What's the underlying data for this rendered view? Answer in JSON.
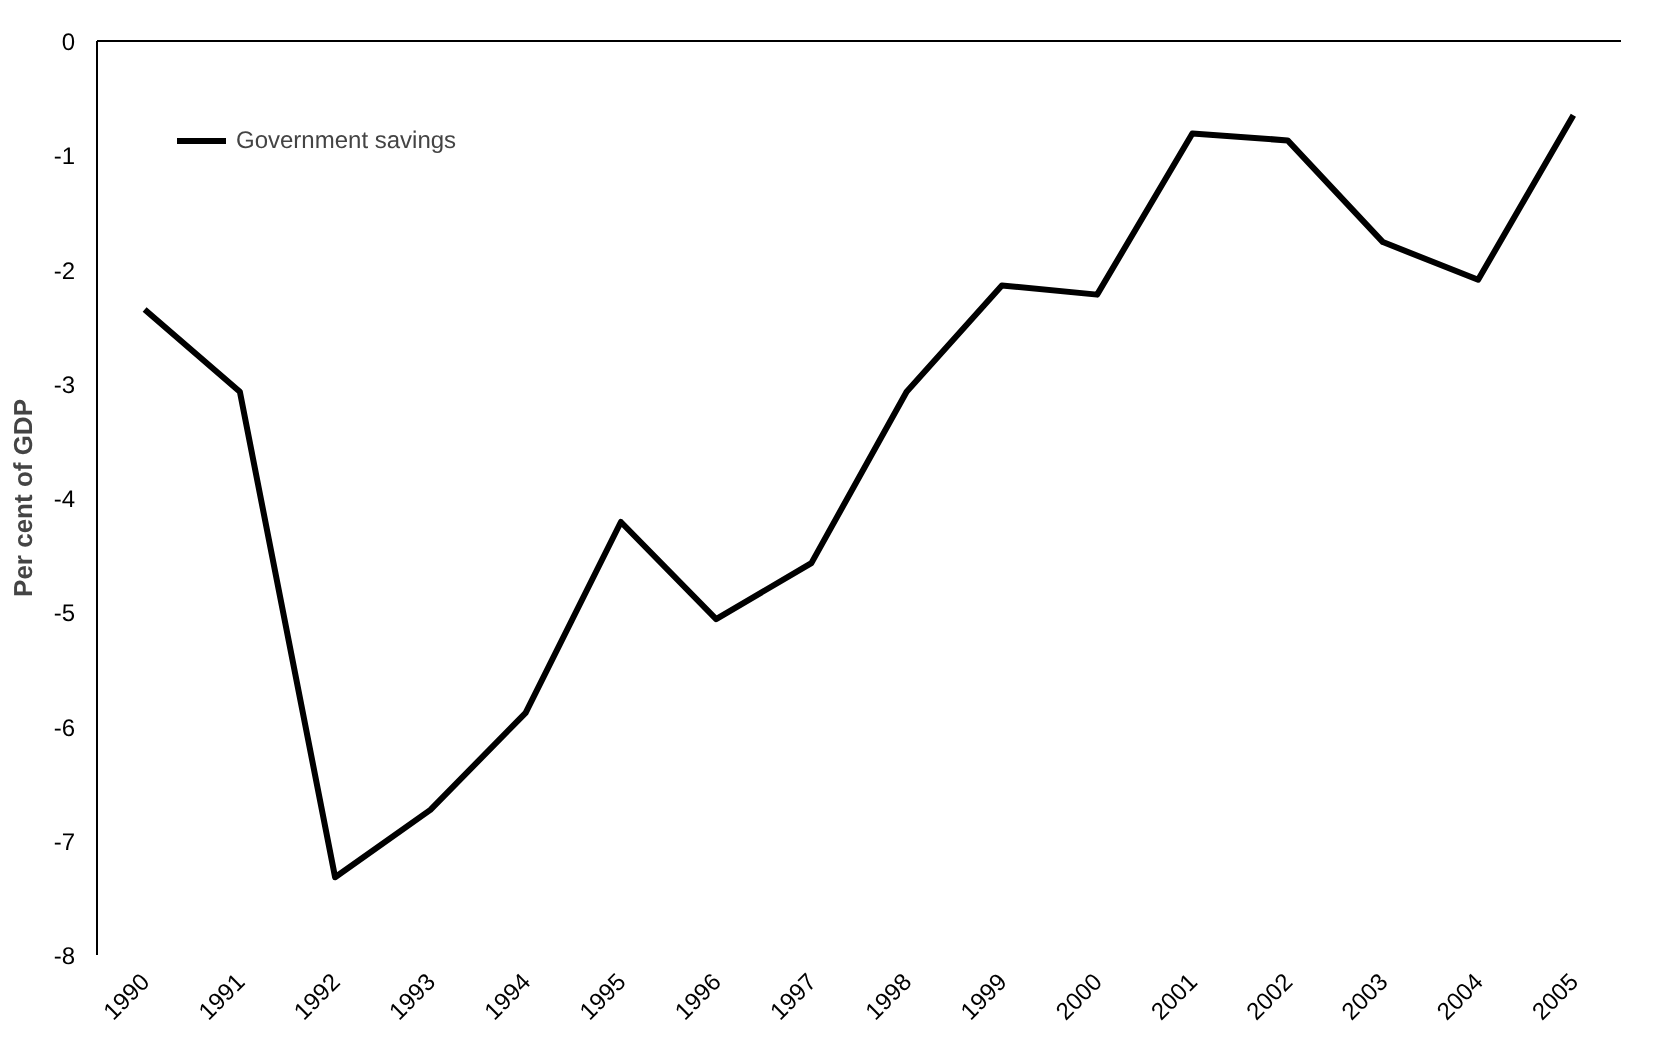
{
  "chart_data": {
    "type": "line",
    "ylabel": "Per cent of GDP",
    "categories": [
      "1990",
      "1991",
      "1992",
      "1993",
      "1994",
      "1995",
      "1996",
      "1997",
      "1998",
      "1999",
      "2000",
      "2001",
      "2002",
      "2003",
      "2004",
      "2005"
    ],
    "series": [
      {
        "name": "Government savings",
        "color": "#000000",
        "values": [
          -2.35,
          -3.07,
          -7.32,
          -6.73,
          -5.88,
          -4.21,
          -5.06,
          -4.57,
          -3.07,
          -2.14,
          -2.22,
          -0.81,
          -0.87,
          -1.76,
          -2.09,
          -0.65
        ]
      }
    ],
    "ylim": [
      -8,
      0
    ],
    "yticks": [
      0,
      -1,
      -2,
      -3,
      -4,
      -5,
      -6,
      -7,
      -8
    ],
    "grid": false,
    "legend": "top left",
    "marker": "none",
    "line_style": "solid"
  }
}
